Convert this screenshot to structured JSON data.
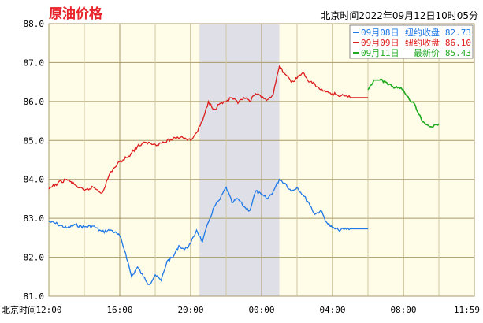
{
  "header": {
    "title": "原油价格",
    "timestamp": "北京时间2022年09月12日10时05分"
  },
  "chart_data": {
    "type": "line",
    "ylim": [
      81.0,
      88.0
    ],
    "yticks": [
      "88.0",
      "87.0",
      "86.0",
      "85.0",
      "84.0",
      "83.0",
      "82.0",
      "81.0"
    ],
    "xlabel_prefix": "北京时间",
    "xticks": [
      "12:00",
      "16:00",
      "20:00",
      "00:00",
      "04:00",
      "08:00",
      "11:59"
    ],
    "grid": true,
    "legend_position": "top-right",
    "shaded_period": [
      "20:30",
      "01:00"
    ],
    "series": [
      {
        "name": "09月08日",
        "legend_label": "纽约收盘",
        "legend_value": "82.73",
        "color": "#1e78e6",
        "points": [
          [
            "12:00",
            82.92
          ],
          [
            "12:30",
            82.85
          ],
          [
            "13:00",
            82.75
          ],
          [
            "13:30",
            82.83
          ],
          [
            "14:00",
            82.78
          ],
          [
            "14:30",
            82.8
          ],
          [
            "15:00",
            82.65
          ],
          [
            "15:30",
            82.7
          ],
          [
            "16:00",
            82.55
          ],
          [
            "16:20",
            82.1
          ],
          [
            "16:40",
            81.5
          ],
          [
            "17:00",
            81.75
          ],
          [
            "17:20",
            81.5
          ],
          [
            "17:40",
            81.3
          ],
          [
            "18:00",
            81.55
          ],
          [
            "18:20",
            81.4
          ],
          [
            "18:40",
            81.9
          ],
          [
            "19:00",
            82.0
          ],
          [
            "19:20",
            82.3
          ],
          [
            "19:40",
            82.2
          ],
          [
            "20:00",
            82.35
          ],
          [
            "20:20",
            82.7
          ],
          [
            "20:40",
            82.4
          ],
          [
            "21:00",
            82.9
          ],
          [
            "21:20",
            83.3
          ],
          [
            "21:40",
            83.5
          ],
          [
            "22:00",
            83.8
          ],
          [
            "22:20",
            83.4
          ],
          [
            "22:40",
            83.5
          ],
          [
            "23:00",
            83.3
          ],
          [
            "23:20",
            83.2
          ],
          [
            "23:40",
            83.7
          ],
          [
            "00:00",
            83.6
          ],
          [
            "00:20",
            83.5
          ],
          [
            "00:40",
            83.7
          ],
          [
            "01:00",
            84.0
          ],
          [
            "01:20",
            83.9
          ],
          [
            "01:40",
            83.7
          ],
          [
            "02:00",
            83.8
          ],
          [
            "02:20",
            83.6
          ],
          [
            "02:40",
            83.4
          ],
          [
            "03:00",
            83.1
          ],
          [
            "03:20",
            83.2
          ],
          [
            "03:40",
            82.9
          ],
          [
            "04:00",
            82.75
          ],
          [
            "04:20",
            82.7
          ],
          [
            "04:40",
            82.72
          ],
          [
            "05:00",
            82.73
          ],
          [
            "05:30",
            82.73
          ],
          [
            "06:00",
            82.73
          ]
        ]
      },
      {
        "name": "09月09日",
        "legend_label": "纽约收盘",
        "legend_value": "86.10",
        "color": "#dd1c1c",
        "points": [
          [
            "12:00",
            83.75
          ],
          [
            "12:30",
            83.9
          ],
          [
            "13:00",
            84.0
          ],
          [
            "13:30",
            83.85
          ],
          [
            "14:00",
            83.7
          ],
          [
            "14:30",
            83.8
          ],
          [
            "15:00",
            83.65
          ],
          [
            "15:30",
            84.2
          ],
          [
            "16:00",
            84.45
          ],
          [
            "16:30",
            84.6
          ],
          [
            "17:00",
            84.85
          ],
          [
            "17:30",
            84.95
          ],
          [
            "18:00",
            84.9
          ],
          [
            "18:30",
            84.95
          ],
          [
            "19:00",
            85.05
          ],
          [
            "19:30",
            85.1
          ],
          [
            "20:00",
            85.0
          ],
          [
            "20:20",
            85.2
          ],
          [
            "20:40",
            85.5
          ],
          [
            "21:00",
            86.0
          ],
          [
            "21:20",
            85.8
          ],
          [
            "21:40",
            85.95
          ],
          [
            "22:00",
            86.0
          ],
          [
            "22:20",
            86.1
          ],
          [
            "22:40",
            85.95
          ],
          [
            "23:00",
            86.1
          ],
          [
            "23:20",
            86.0
          ],
          [
            "23:40",
            86.2
          ],
          [
            "00:00",
            86.1
          ],
          [
            "00:20",
            86.05
          ],
          [
            "00:40",
            86.2
          ],
          [
            "01:00",
            86.9
          ],
          [
            "01:20",
            86.7
          ],
          [
            "01:40",
            86.5
          ],
          [
            "02:00",
            86.6
          ],
          [
            "02:20",
            86.75
          ],
          [
            "02:40",
            86.5
          ],
          [
            "03:00",
            86.45
          ],
          [
            "03:20",
            86.3
          ],
          [
            "03:40",
            86.25
          ],
          [
            "04:00",
            86.2
          ],
          [
            "04:30",
            86.15
          ],
          [
            "05:00",
            86.1
          ],
          [
            "05:30",
            86.1
          ],
          [
            "06:00",
            86.1
          ]
        ]
      },
      {
        "name": "09月11日",
        "legend_label": "最新价",
        "legend_value": "85.43",
        "color": "#1faa1f",
        "points": [
          [
            "06:00",
            86.3
          ],
          [
            "06:20",
            86.55
          ],
          [
            "06:40",
            86.55
          ],
          [
            "07:00",
            86.5
          ],
          [
            "07:20",
            86.4
          ],
          [
            "07:40",
            86.35
          ],
          [
            "08:00",
            86.3
          ],
          [
            "08:20",
            86.05
          ],
          [
            "08:40",
            85.9
          ],
          [
            "09:00",
            85.55
          ],
          [
            "09:20",
            85.4
          ],
          [
            "09:40",
            85.35
          ],
          [
            "10:00",
            85.43
          ]
        ]
      }
    ]
  }
}
